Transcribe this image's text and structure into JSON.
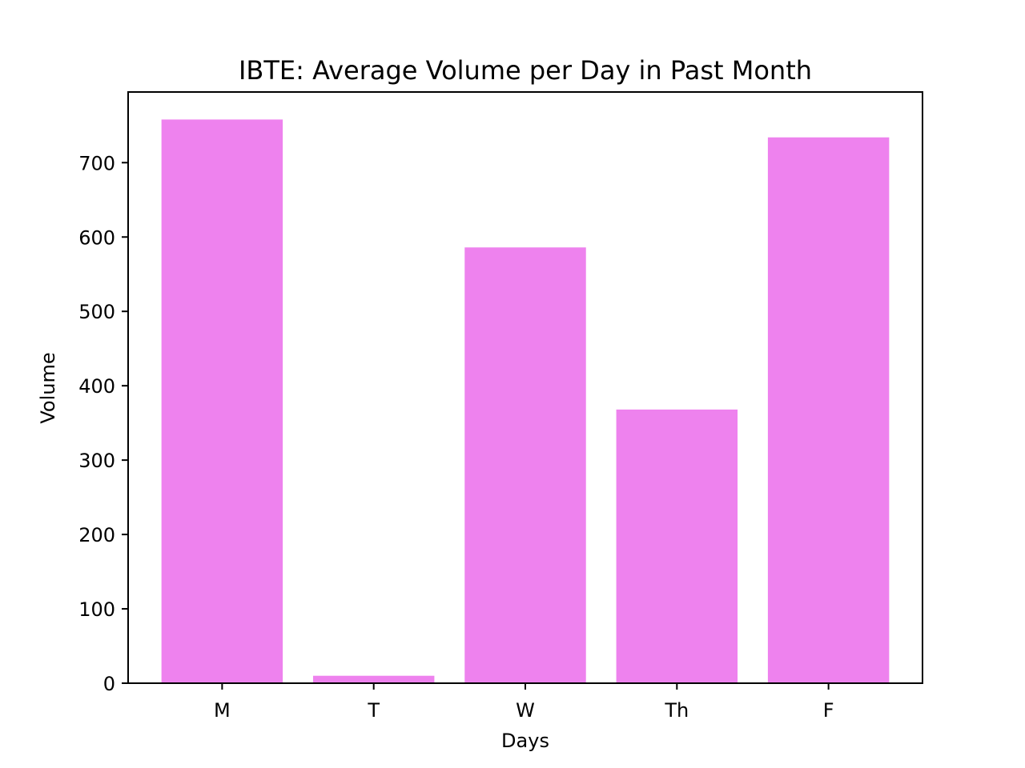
{
  "chart_data": {
    "type": "bar",
    "title": "IBTE: Average Volume per Day in Past Month",
    "xlabel": "Days",
    "ylabel": "Volume",
    "categories": [
      "M",
      "T",
      "W",
      "Th",
      "F"
    ],
    "values": [
      758,
      10,
      586,
      368,
      734
    ],
    "ylim": [
      0,
      795
    ],
    "yticks": [
      0,
      100,
      200,
      300,
      400,
      500,
      600,
      700
    ],
    "grid": false,
    "bar_color": "#ee82ee"
  }
}
